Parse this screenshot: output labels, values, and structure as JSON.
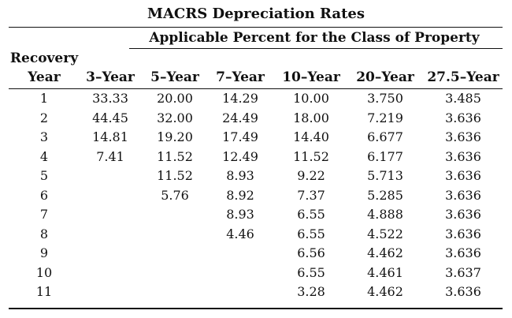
{
  "title": "MACRS Depreciation Rates",
  "subtitle": "Applicable Percent for the Class of Property",
  "header_line1": "Recovery",
  "columns": [
    "Year",
    "3–Year",
    "5–Year",
    "7–Year",
    "10–Year",
    "20–Year",
    "27.5–Year"
  ],
  "rows": [
    [
      "1",
      "33.33",
      "20.00",
      "14.29",
      "10.00",
      "3.750",
      "3.485"
    ],
    [
      "2",
      "44.45",
      "32.00",
      "24.49",
      "18.00",
      "7.219",
      "3.636"
    ],
    [
      "3",
      "14.81",
      "19.20",
      "17.49",
      "14.40",
      "6.677",
      "3.636"
    ],
    [
      "4",
      "7.41",
      "11.52",
      "12.49",
      "11.52",
      "6.177",
      "3.636"
    ],
    [
      "5",
      "",
      "11.52",
      "8.93",
      "9.22",
      "5.713",
      "3.636"
    ],
    [
      "6",
      "",
      "5.76",
      "8.92",
      "7.37",
      "5.285",
      "3.636"
    ],
    [
      "7",
      "",
      "",
      "8.93",
      "6.55",
      "4.888",
      "3.636"
    ],
    [
      "8",
      "",
      "",
      "4.46",
      "6.55",
      "4.522",
      "3.636"
    ],
    [
      "9",
      "",
      "",
      "",
      "6.56",
      "4.462",
      "3.636"
    ],
    [
      "10",
      "",
      "",
      "",
      "6.55",
      "4.461",
      "3.637"
    ],
    [
      "11",
      "",
      "",
      "",
      "3.28",
      "4.462",
      "3.636"
    ]
  ]
}
